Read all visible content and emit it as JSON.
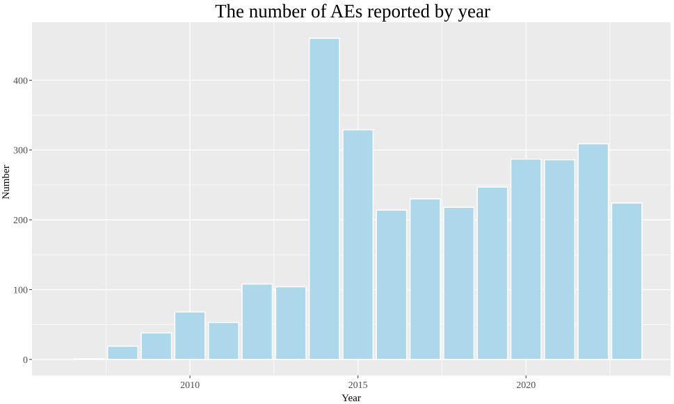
{
  "chart_data": {
    "type": "bar",
    "title": "The number of AEs reported by year",
    "xlabel": "Year",
    "ylabel": "Number",
    "x": [
      2007,
      2008,
      2009,
      2010,
      2011,
      2012,
      2013,
      2014,
      2015,
      2016,
      2017,
      2018,
      2019,
      2020,
      2021,
      2022,
      2023
    ],
    "values": [
      1,
      19,
      38,
      68,
      53,
      108,
      104,
      460,
      329,
      214,
      230,
      218,
      247,
      287,
      286,
      309,
      224
    ],
    "xlim": [
      2005.3,
      2024.3
    ],
    "ylim": [
      -23,
      483
    ],
    "x_ticks": [
      2010,
      2015,
      2020
    ],
    "x_tick_labels": [
      "2010",
      "2015",
      "2020"
    ],
    "y_ticks": [
      0,
      100,
      200,
      300,
      400
    ],
    "y_tick_labels": [
      "0",
      "100",
      "200",
      "300",
      "400"
    ],
    "grid": true,
    "legend": "none",
    "colors": {
      "bar_fill": "#add8eb",
      "bar_outline": "#ffffff",
      "panel_background": "#ebebeb",
      "grid_line": "#ffffff"
    }
  }
}
